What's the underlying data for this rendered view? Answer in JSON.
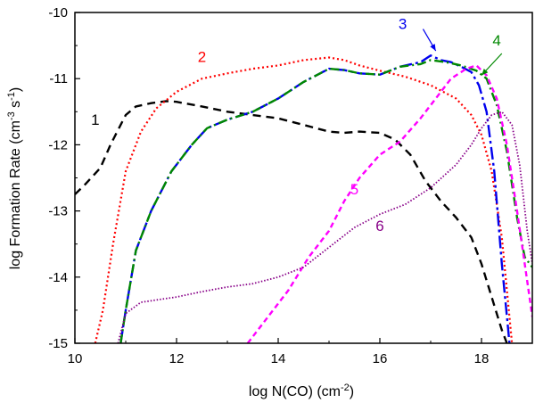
{
  "chart_data": {
    "type": "line",
    "title": "",
    "xlabel": "log N(CO) (cm",
    "xlabel_sup": "-2",
    "xlabel_tail": ")",
    "ylabel": "log Formation Rate (cm",
    "ylabel_sup1": "-3",
    "ylabel_mid": " s",
    "ylabel_sup2": "-1",
    "ylabel_tail": ")",
    "xlim": [
      10,
      19
    ],
    "ylim": [
      -15,
      -10
    ],
    "x_ticks": [
      10,
      12,
      14,
      16,
      18
    ],
    "y_ticks": [
      -15,
      -14,
      -13,
      -12,
      -11,
      -10
    ],
    "grid": false,
    "series": [
      {
        "name": "1",
        "color": "#000000",
        "dash": "9,6",
        "width": 2.4,
        "label_pos": [
          10.4,
          -11.7
        ],
        "x": [
          10.0,
          10.2,
          10.5,
          10.7,
          10.9,
          11.0,
          11.2,
          11.5,
          11.8,
          12.0,
          12.5,
          13.0,
          13.5,
          14.0,
          14.5,
          15.0,
          15.3,
          15.6,
          16.0,
          16.3,
          16.6,
          16.9,
          17.2,
          17.5,
          17.8,
          18.0,
          18.2,
          18.4,
          18.5
        ],
        "y": [
          -12.75,
          -12.6,
          -12.35,
          -12.0,
          -11.7,
          -11.55,
          -11.42,
          -11.37,
          -11.34,
          -11.35,
          -11.42,
          -11.5,
          -11.55,
          -11.6,
          -11.7,
          -11.8,
          -11.82,
          -11.8,
          -11.82,
          -11.92,
          -12.15,
          -12.55,
          -12.85,
          -13.1,
          -13.4,
          -13.8,
          -14.3,
          -14.8,
          -15.0
        ]
      },
      {
        "name": "2",
        "color": "#ff0000",
        "dash": "2,3",
        "width": 2.2,
        "label_pos": [
          12.5,
          -10.75
        ],
        "x": [
          10.4,
          10.55,
          10.75,
          11.0,
          11.3,
          11.6,
          12.0,
          12.5,
          13.0,
          13.5,
          14.0,
          14.5,
          15.0,
          15.3,
          15.6,
          16.0,
          16.5,
          17.0,
          17.5,
          17.8,
          18.0,
          18.2,
          18.4,
          18.6
        ],
        "y": [
          -15.0,
          -14.5,
          -13.5,
          -12.4,
          -11.8,
          -11.45,
          -11.2,
          -11.0,
          -10.92,
          -10.85,
          -10.8,
          -10.72,
          -10.68,
          -10.72,
          -10.8,
          -10.88,
          -10.97,
          -11.1,
          -11.3,
          -11.55,
          -11.85,
          -12.4,
          -13.4,
          -15.0
        ]
      },
      {
        "name": "3",
        "color": "#0000ee",
        "dash": "14,4,3,4",
        "width": 2.4,
        "label_pos": [
          16.45,
          -10.25
        ],
        "x": [
          10.9,
          11.0,
          11.2,
          11.5,
          11.9,
          12.3,
          12.6,
          13.0,
          13.5,
          14.0,
          14.5,
          15.0,
          15.3,
          15.6,
          16.0,
          16.4,
          16.8,
          17.0,
          17.2,
          17.4,
          17.6,
          17.8,
          17.95,
          18.1,
          18.25,
          18.4,
          18.55
        ],
        "y": [
          -15.0,
          -14.5,
          -13.6,
          -13.0,
          -12.4,
          -12.0,
          -11.75,
          -11.62,
          -11.5,
          -11.3,
          -11.05,
          -10.85,
          -10.87,
          -10.92,
          -10.94,
          -10.82,
          -10.75,
          -10.65,
          -10.72,
          -10.75,
          -10.82,
          -10.9,
          -11.1,
          -11.5,
          -12.4,
          -13.8,
          -15.0
        ]
      },
      {
        "name": "4",
        "color": "#008800",
        "dash": "10,4,2,4",
        "width": 2.4,
        "label_pos": [
          18.3,
          -10.5
        ],
        "x": [
          10.9,
          11.0,
          11.2,
          11.5,
          11.9,
          12.3,
          12.6,
          13.0,
          13.5,
          14.0,
          14.5,
          15.0,
          15.3,
          15.6,
          16.0,
          16.4,
          16.8,
          17.0,
          17.3,
          17.6,
          17.9,
          18.1,
          18.3,
          18.5,
          18.7,
          18.85,
          19.0
        ],
        "y": [
          -15.0,
          -14.5,
          -13.6,
          -13.0,
          -12.4,
          -12.0,
          -11.75,
          -11.62,
          -11.5,
          -11.3,
          -11.05,
          -10.85,
          -10.87,
          -10.92,
          -10.94,
          -10.82,
          -10.78,
          -10.72,
          -10.75,
          -10.8,
          -10.88,
          -11.0,
          -11.4,
          -12.1,
          -13.1,
          -13.7,
          -13.85
        ]
      },
      {
        "name": "5",
        "color": "#ff00ff",
        "dash": "6,4",
        "width": 2.4,
        "label_pos": [
          15.5,
          -12.75
        ],
        "x": [
          13.4,
          13.8,
          14.2,
          14.6,
          15.0,
          15.3,
          15.6,
          16.0,
          16.4,
          16.8,
          17.1,
          17.4,
          17.7,
          17.9,
          18.1,
          18.3,
          18.5,
          18.7,
          18.85,
          19.0
        ],
        "y": [
          -15.0,
          -14.6,
          -14.2,
          -13.7,
          -13.3,
          -12.85,
          -12.5,
          -12.15,
          -11.95,
          -11.6,
          -11.3,
          -11.0,
          -10.85,
          -10.8,
          -10.95,
          -11.3,
          -12.0,
          -13.0,
          -13.8,
          -14.6
        ]
      },
      {
        "name": "6",
        "color": "#880088",
        "dash": "1.5,2",
        "width": 1.8,
        "label_pos": [
          16.0,
          -13.3
        ],
        "x": [
          10.85,
          11.0,
          11.3,
          12.0,
          12.5,
          13.0,
          13.5,
          14.0,
          14.5,
          15.0,
          15.5,
          16.0,
          16.5,
          17.0,
          17.5,
          17.8,
          18.0,
          18.2,
          18.4,
          18.6,
          18.75,
          18.9,
          19.0
        ],
        "y": [
          -15.0,
          -14.55,
          -14.38,
          -14.3,
          -14.22,
          -14.15,
          -14.1,
          -14.0,
          -13.85,
          -13.55,
          -13.25,
          -13.05,
          -12.9,
          -12.65,
          -12.3,
          -12.0,
          -11.75,
          -11.55,
          -11.5,
          -11.7,
          -12.3,
          -13.3,
          -13.8
        ]
      }
    ],
    "annotations": [
      {
        "target": "3",
        "from": [
          16.85,
          -10.25
        ],
        "to": [
          17.1,
          -10.58
        ]
      },
      {
        "target": "4",
        "from": [
          18.4,
          -10.62
        ],
        "to": [
          18.0,
          -10.95
        ]
      }
    ]
  }
}
